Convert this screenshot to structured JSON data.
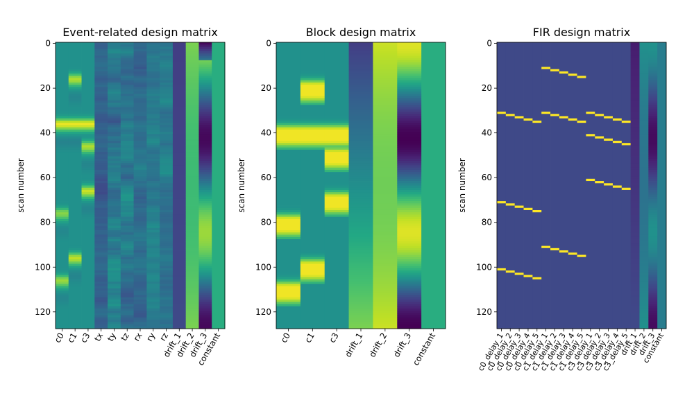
{
  "chart_data": [
    {
      "type": "heatmap",
      "title": "Event-related design matrix",
      "ylabel": "scan number",
      "ylim": [
        0,
        127
      ],
      "yticks": [
        "0",
        "20",
        "40",
        "60",
        "80",
        "100",
        "120"
      ],
      "colormap": "viridis",
      "columns": [
        "c0",
        "c1",
        "c3",
        "tx",
        "ty",
        "tz",
        "rx",
        "ry",
        "rz",
        "drift_1",
        "drift_2",
        "drift_3",
        "constant"
      ],
      "xticklabels": [
        "c0",
        "c1",
        "c3",
        "tx",
        "ty",
        "tz",
        "rx",
        "ry",
        "rz",
        "drift_1",
        "drift_2",
        "drift_3",
        "constant"
      ],
      "events": [
        {
          "column": "c0",
          "onset": 36,
          "peak": 0.97
        },
        {
          "column": "c0",
          "onset": 76,
          "peak": 0.82
        },
        {
          "column": "c0",
          "onset": 106,
          "peak": 0.85
        },
        {
          "column": "c1",
          "onset": 16,
          "peak": 0.88
        },
        {
          "column": "c1",
          "onset": 36,
          "peak": 0.97
        },
        {
          "column": "c1",
          "onset": 96,
          "peak": 0.9
        },
        {
          "column": "c3",
          "onset": 36,
          "peak": 0.97
        },
        {
          "column": "c3",
          "onset": 46,
          "peak": 0.88
        },
        {
          "column": "c3",
          "onset": 66,
          "peak": 0.92
        }
      ]
    },
    {
      "type": "heatmap",
      "title": "Block design matrix",
      "ylabel": "scan number",
      "ylim": [
        0,
        127
      ],
      "yticks": [
        "0",
        "20",
        "40",
        "60",
        "80",
        "100",
        "120"
      ],
      "colormap": "viridis",
      "columns": [
        "c0",
        "c1",
        "c3",
        "drift_1",
        "drift_2",
        "drift_3",
        "constant"
      ],
      "xticklabels": [
        "c0",
        "c1",
        "c3",
        "drift_1",
        "drift_2",
        "drift_3",
        "constant"
      ],
      "blocks": [
        {
          "column": "c0",
          "start": 39,
          "end": 43
        },
        {
          "column": "c0",
          "start": 79,
          "end": 83
        },
        {
          "column": "c0",
          "start": 109,
          "end": 113
        },
        {
          "column": "c1",
          "start": 19,
          "end": 23
        },
        {
          "column": "c1",
          "start": 39,
          "end": 43
        },
        {
          "column": "c1",
          "start": 99,
          "end": 103
        },
        {
          "column": "c3",
          "start": 39,
          "end": 43
        },
        {
          "column": "c3",
          "start": 49,
          "end": 53
        },
        {
          "column": "c3",
          "start": 69,
          "end": 73
        }
      ]
    },
    {
      "type": "heatmap",
      "title": "FIR design matrix",
      "ylabel": "scan number",
      "ylim": [
        0,
        127
      ],
      "yticks": [
        "0",
        "20",
        "40",
        "60",
        "80",
        "100",
        "120"
      ],
      "colormap": "viridis",
      "columns": [
        "c0_delay_1",
        "c0_delay_2",
        "c0_delay_3",
        "c0_delay_4",
        "c0_delay_5",
        "c1_delay_1",
        "c1_delay_2",
        "c1_delay_3",
        "c1_delay_4",
        "c1_delay_5",
        "c3_delay_1",
        "c3_delay_2",
        "c3_delay_3",
        "c3_delay_4",
        "c3_delay_5",
        "drift_1",
        "drift_2",
        "drift_3",
        "constant"
      ],
      "xticklabels": [
        "c0_delay_1",
        "c0_delay_2",
        "c0_delay_3",
        "c0_delay_4",
        "c0_delay_5",
        "c1_delay_1",
        "c1_delay_2",
        "c1_delay_3",
        "c1_delay_4",
        "c1_delay_5",
        "c3_delay_1",
        "c3_delay_2",
        "c3_delay_3",
        "c3_delay_4",
        "c3_delay_5",
        "drift_1",
        "drift_2",
        "drift_3",
        "constant"
      ],
      "onsets": {
        "c0": [
          31,
          71,
          101
        ],
        "c1": [
          11,
          31,
          91
        ],
        "c3": [
          31,
          41,
          61
        ]
      }
    }
  ]
}
